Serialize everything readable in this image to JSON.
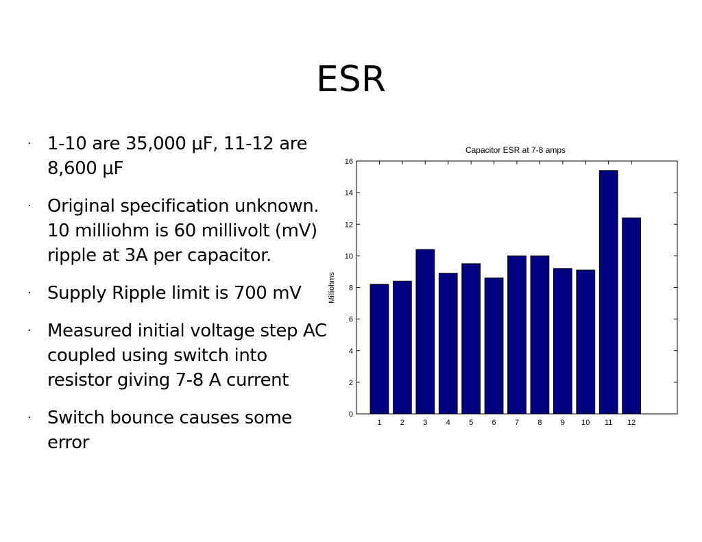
{
  "slide": {
    "title": "ESR",
    "bullets": [
      "1-10 are 35,000 μF, 11-12 are 8,600 μF",
      "Original specification unknown. 10 milliohm is 60 millivolt (mV) ripple at 3A per capacitor.",
      "Supply Ripple limit is 700 mV",
      "Measured initial voltage step AC coupled using switch into resistor giving 7-8 A current",
      "Switch bounce causes some error"
    ]
  },
  "chart_data": {
    "type": "bar",
    "title": "Capacitor ESR at 7-8 amps",
    "xlabel": "",
    "ylabel": "Milliohms",
    "categories": [
      "1",
      "2",
      "3",
      "4",
      "5",
      "6",
      "7",
      "8",
      "9",
      "10",
      "11",
      "12"
    ],
    "values": [
      8.2,
      8.4,
      10.4,
      8.9,
      9.5,
      8.6,
      10.0,
      10.0,
      9.2,
      9.1,
      15.4,
      12.4
    ],
    "ylim": [
      0,
      16
    ],
    "xlim": [
      0,
      14
    ],
    "yticks": [
      0,
      2,
      4,
      6,
      8,
      10,
      12,
      14,
      16
    ],
    "grid": false,
    "bar_color": "#000080"
  }
}
